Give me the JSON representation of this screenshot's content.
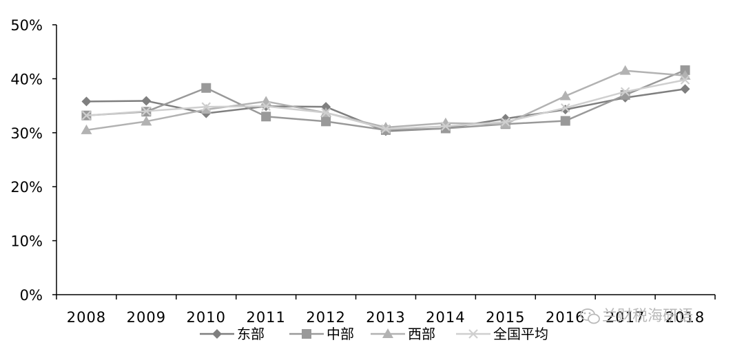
{
  "chart_data": {
    "type": "line",
    "title": "",
    "xlabel": "",
    "ylabel": "",
    "categories": [
      "2008",
      "2009",
      "2010",
      "2011",
      "2012",
      "2013",
      "2014",
      "2015",
      "2016",
      "2017",
      "2018"
    ],
    "ylim": [
      0,
      50
    ],
    "yticks": [
      "0%",
      "10%",
      "20%",
      "30%",
      "40%",
      "50%"
    ],
    "grid": false,
    "legend_position": "bottom",
    "series": [
      {
        "name": "东部",
        "marker": "diamond",
        "color": "#7f7f7f",
        "values": [
          35.8,
          35.9,
          33.6,
          34.9,
          34.8,
          30.3,
          30.8,
          32.6,
          34.3,
          36.5,
          38.1
        ]
      },
      {
        "name": "中部",
        "marker": "square",
        "color": "#999999",
        "values": [
          33.2,
          33.9,
          38.3,
          33.0,
          32.1,
          30.5,
          30.8,
          31.6,
          32.2,
          37.0,
          41.6
        ]
      },
      {
        "name": "西部",
        "marker": "triangle",
        "color": "#b2b2b2",
        "values": [
          30.5,
          32.1,
          34.3,
          35.8,
          33.7,
          31.0,
          31.8,
          31.6,
          36.8,
          41.5,
          40.6
        ]
      },
      {
        "name": "全国平均",
        "marker": "x",
        "color": "#cfcfcf",
        "values": [
          33.2,
          34.0,
          34.8,
          34.9,
          33.7,
          30.7,
          31.2,
          32.0,
          34.6,
          37.6,
          39.8
        ]
      }
    ]
  },
  "watermark": {
    "icon": "wechat-icon",
    "text": "兰财税海研语"
  }
}
